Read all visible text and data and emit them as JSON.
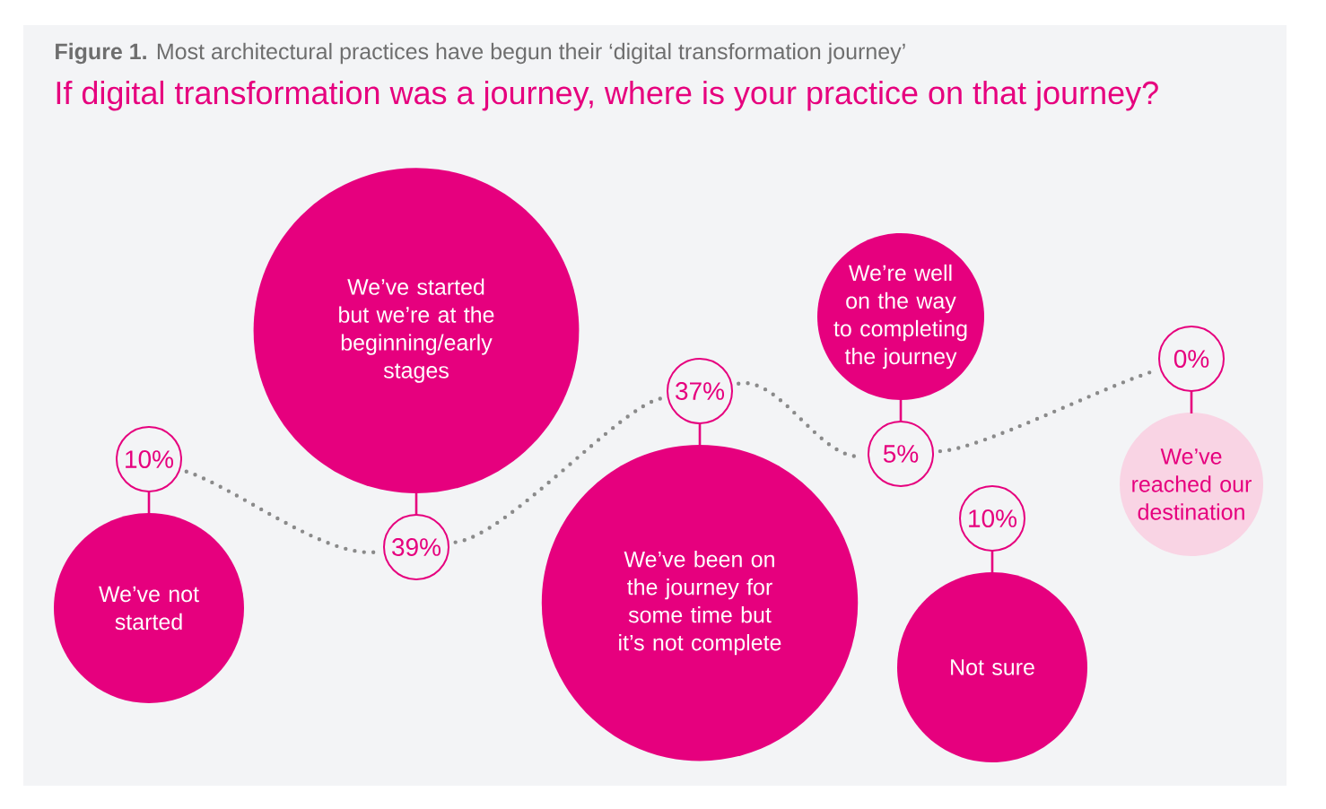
{
  "chart_data": {
    "type": "other",
    "title": "If digital transformation was a journey, where is your practice on that journey?",
    "annotations": [
      "**Figure 1.** Most architectural practices have begun their ‘digital transformation journey’"
    ],
    "categories": [
      "We’ve not started",
      "We’ve started but we’re at the beginning/early stages",
      "We’ve been on the journey for some time but it’s not complete",
      "We’re well on the way to completing the journey",
      "Not sure",
      "We’ve reached our destination"
    ],
    "values": [
      10,
      39,
      37,
      5,
      10,
      0
    ],
    "value_labels": [
      "10%",
      "39%",
      "37%",
      "5%",
      "10%",
      "0%"
    ],
    "colors": [
      "#e6007e",
      "#e6007e",
      "#e6007e",
      "#e6007e",
      "#e6007e",
      "#f9d4e4"
    ]
  }
}
